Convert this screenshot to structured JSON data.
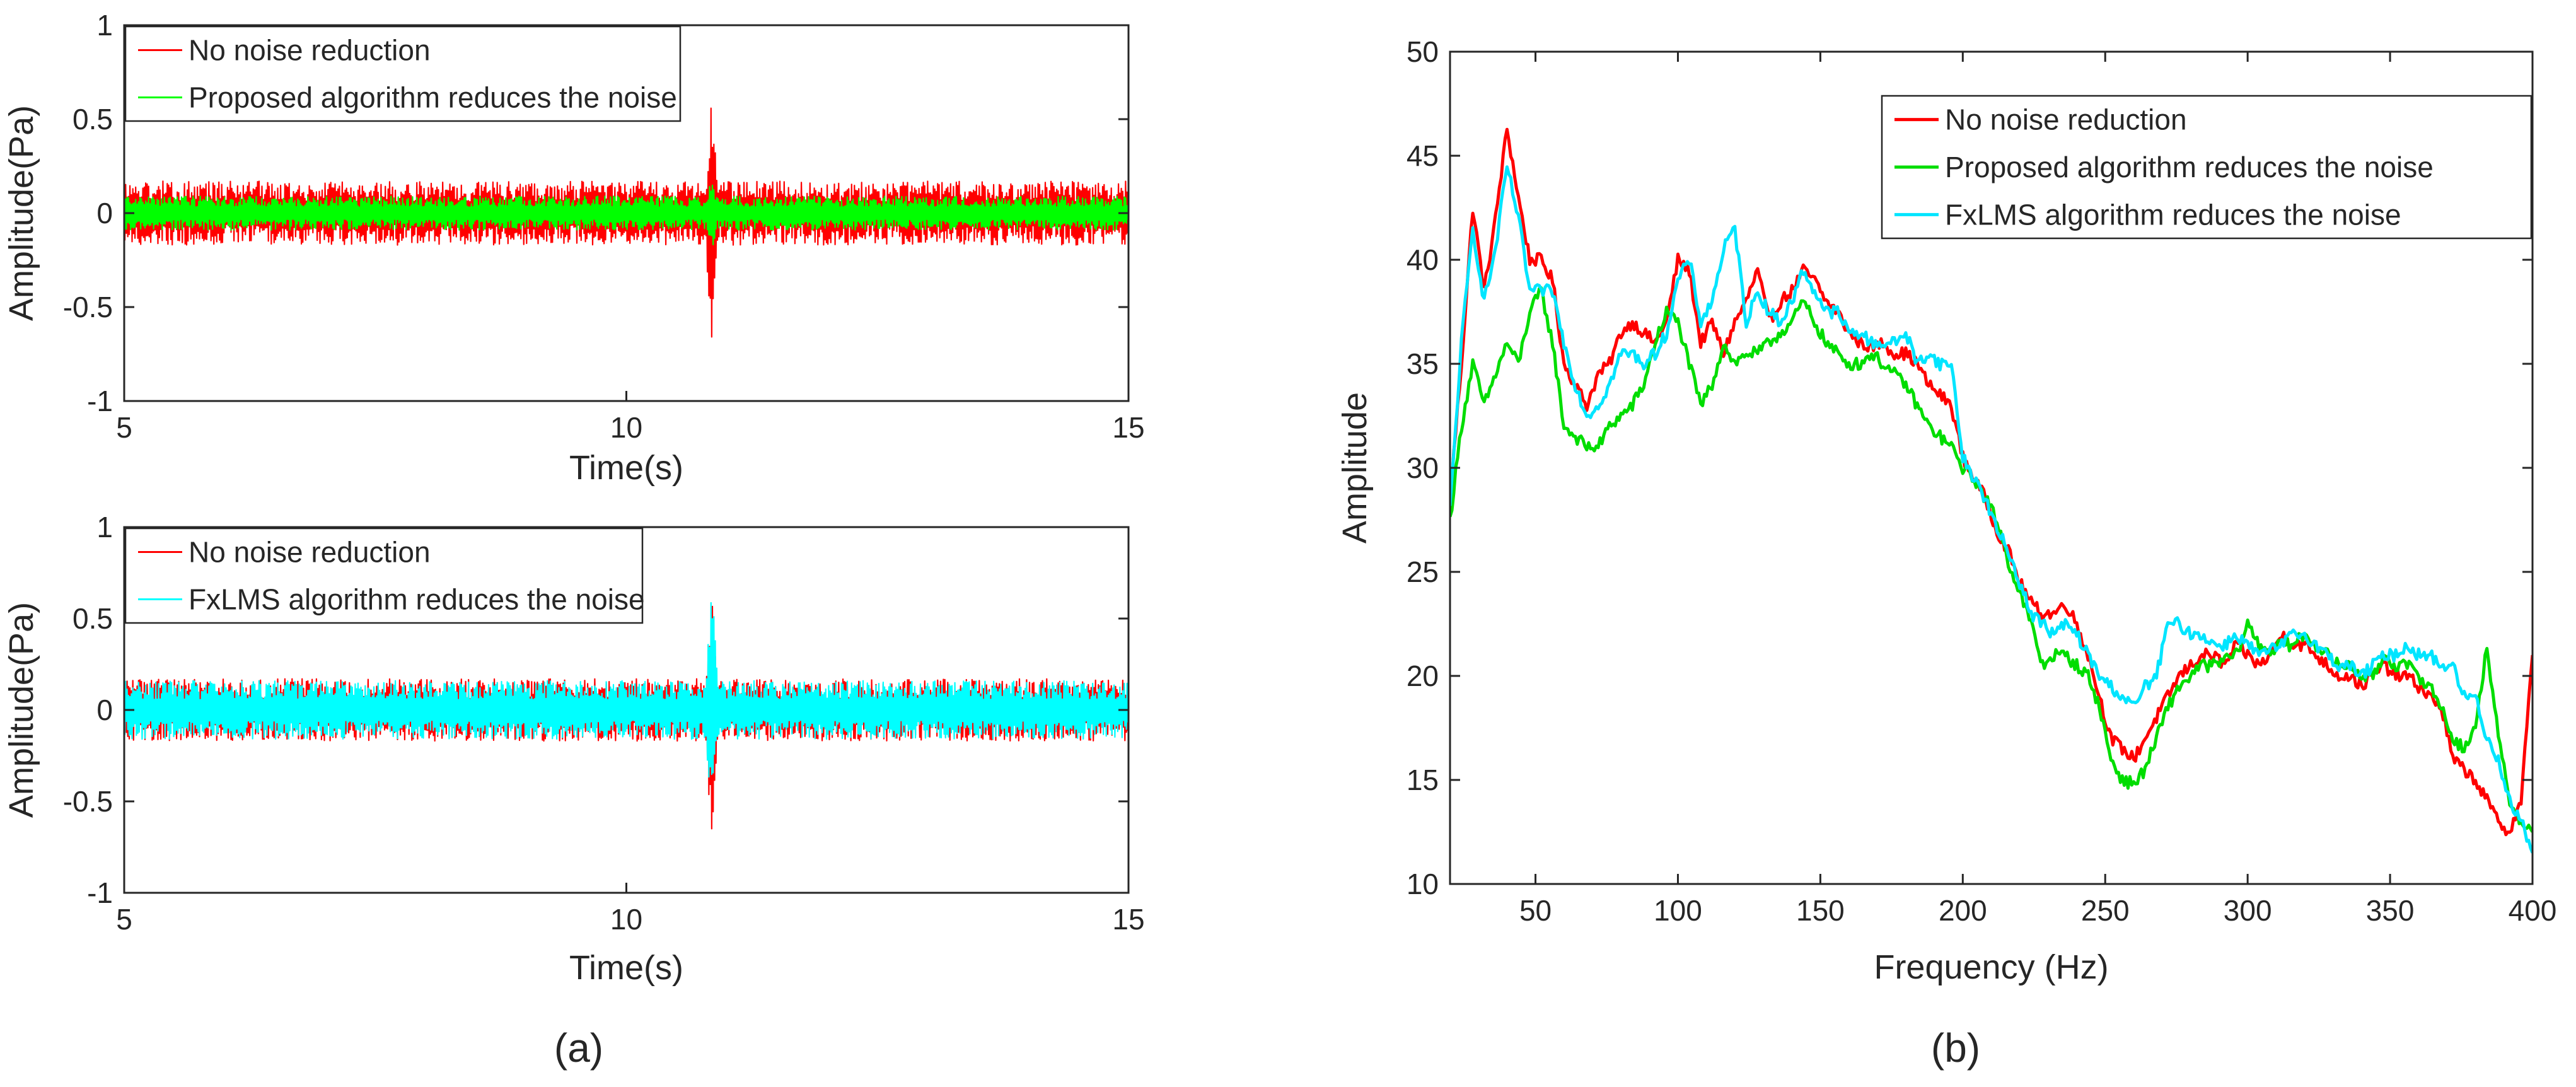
{
  "chart_data": [
    {
      "panel": "a",
      "type": "line",
      "xlabel": "Time(s)",
      "ylabel": "Amplitude(Pa)",
      "xlim": [
        5,
        15
      ],
      "ylim": [
        -1,
        1
      ],
      "xticks": [
        5,
        10,
        15
      ],
      "yticks": [
        -1,
        -0.5,
        0,
        0.5,
        1
      ],
      "grid": false,
      "legend_position": "top-left",
      "series": [
        {
          "name": "No noise reduction",
          "color": "#ff0000",
          "noise_amplitude": 0.17,
          "burst": {
            "x": 10.85,
            "peak_high": 0.62,
            "peak_low": -0.68
          }
        },
        {
          "name": "Proposed algorithm reduces the noise",
          "color": "#00ff00",
          "noise_amplitude": 0.09,
          "burst": {
            "x": 10.85,
            "peak_high": 0.18,
            "peak_low": -0.2
          }
        }
      ]
    },
    {
      "panel": "a",
      "type": "line",
      "xlabel": "Time(s)",
      "ylabel": "Amplitude(Pa)",
      "xlim": [
        5,
        15
      ],
      "ylim": [
        -1,
        1
      ],
      "xticks": [
        5,
        10,
        15
      ],
      "yticks": [
        -1,
        -0.5,
        0,
        0.5,
        1
      ],
      "grid": false,
      "legend_position": "top-left",
      "series": [
        {
          "name": "No noise reduction",
          "color": "#ff0000",
          "noise_amplitude": 0.17,
          "burst": {
            "x": 10.85,
            "peak_high": 0.62,
            "peak_low": -0.68
          }
        },
        {
          "name": "FxLMS algorithm reduces the noise",
          "color": "#00ffff",
          "noise_amplitude": 0.16,
          "burst": {
            "x": 10.85,
            "peak_high": 0.68,
            "peak_low": -0.6
          }
        }
      ]
    },
    {
      "panel": "b",
      "type": "line",
      "xlabel": "Frequency (Hz)",
      "ylabel": "Amplitude",
      "xlim": [
        20,
        400
      ],
      "ylim": [
        10,
        50
      ],
      "xticks": [
        50,
        100,
        150,
        200,
        250,
        300,
        350,
        400
      ],
      "yticks": [
        10,
        15,
        20,
        25,
        30,
        35,
        40,
        45,
        50
      ],
      "grid": false,
      "legend_position": "top-right",
      "x": [
        20,
        24,
        28,
        32,
        36,
        40,
        44,
        48,
        52,
        56,
        60,
        64,
        68,
        72,
        76,
        80,
        84,
        88,
        92,
        96,
        100,
        104,
        108,
        112,
        116,
        120,
        124,
        128,
        132,
        136,
        140,
        144,
        148,
        152,
        156,
        160,
        164,
        168,
        172,
        176,
        180,
        184,
        188,
        192,
        196,
        200,
        204,
        208,
        212,
        216,
        220,
        224,
        228,
        232,
        236,
        240,
        244,
        248,
        252,
        256,
        260,
        264,
        268,
        272,
        276,
        280,
        284,
        288,
        292,
        296,
        300,
        304,
        308,
        312,
        316,
        320,
        324,
        328,
        332,
        336,
        340,
        344,
        348,
        352,
        356,
        360,
        364,
        368,
        372,
        376,
        380,
        384,
        388,
        392,
        396,
        400
      ],
      "series": [
        {
          "name": "No noise reduction",
          "color": "#ff0000",
          "values": [
            28.5,
            35,
            42.5,
            38.5,
            42,
            46.3,
            43,
            40,
            40,
            39,
            35,
            34,
            33,
            34.5,
            35,
            36.5,
            37,
            36.5,
            36,
            37,
            40,
            39.5,
            36,
            37,
            35.5,
            37,
            38,
            39.5,
            37,
            38,
            38.5,
            39.5,
            39,
            38,
            37.5,
            36.5,
            36,
            35.8,
            36,
            35.5,
            35.5,
            35,
            34,
            33.5,
            33,
            30.5,
            29.5,
            28.5,
            27,
            26,
            24.5,
            23.5,
            23,
            23,
            23.5,
            22.5,
            21,
            19,
            17,
            16.5,
            16,
            17,
            18,
            19,
            20,
            20.5,
            21,
            21,
            20.5,
            21.5,
            21,
            20.5,
            21,
            22,
            21.5,
            21.5,
            21,
            20.5,
            20,
            20,
            19.5,
            20,
            20.5,
            20,
            20,
            19.5,
            19,
            18.5,
            16,
            15.5,
            15,
            14,
            13,
            12.5,
            14,
            21
          ]
        },
        {
          "name": "Proposed algorithm reduces the noise",
          "color": "#00dd00",
          "values": [
            27.5,
            32,
            35,
            33,
            34.5,
            36,
            35,
            37.5,
            38.5,
            36,
            32,
            31.5,
            31,
            31,
            32,
            32.5,
            33,
            34,
            36,
            37.5,
            37,
            35,
            33,
            34,
            36,
            35,
            35.5,
            35.5,
            36,
            36.5,
            37,
            38,
            37,
            36,
            35.5,
            35,
            35,
            35.5,
            35,
            34.5,
            34,
            33,
            32,
            31.5,
            31,
            30,
            29.5,
            28.5,
            27.5,
            25.5,
            24,
            22.5,
            20.5,
            21,
            21,
            20.5,
            20,
            18.5,
            16,
            15,
            14.8,
            15.5,
            17,
            18.5,
            19.5,
            20,
            20.5,
            20.5,
            20.8,
            21,
            22.5,
            21.5,
            21.2,
            21.5,
            21.5,
            22,
            21.5,
            21,
            20.5,
            20.5,
            20,
            20,
            21,
            20.5,
            20.5,
            20,
            19.5,
            18.5,
            17,
            16.5,
            17.5,
            21.5,
            17,
            14,
            13,
            12.5
          ]
        },
        {
          "name": "FxLMS algorithm reduces the noise",
          "color": "#00e5ff",
          "values": [
            28,
            36,
            41.5,
            38,
            40.5,
            44.5,
            42,
            38.5,
            38.5,
            38.5,
            36,
            34,
            32.5,
            33,
            34,
            35.5,
            35.5,
            35,
            35.5,
            36.5,
            39,
            40,
            37,
            38,
            40.5,
            41.5,
            37,
            38.5,
            37.5,
            37,
            38,
            39.5,
            38.5,
            37.5,
            37.5,
            36.5,
            36.5,
            36,
            36,
            36,
            36.5,
            35,
            35.5,
            35,
            35,
            30.5,
            29.5,
            28.5,
            27,
            26,
            24.5,
            23,
            22.5,
            22,
            22.5,
            22,
            21,
            20,
            19.5,
            19,
            18.5,
            19.5,
            20,
            22.5,
            22.5,
            22,
            22,
            21.5,
            21.5,
            22,
            21.5,
            21,
            21.2,
            21.5,
            22,
            22,
            21.5,
            21,
            20.5,
            20.5,
            20,
            20.5,
            21,
            21,
            21.5,
            21,
            21,
            20.5,
            20.5,
            19,
            19,
            17,
            16,
            14,
            13,
            11.5
          ]
        }
      ]
    }
  ],
  "panel_labels": {
    "a": "(a)",
    "b": "(b)"
  }
}
